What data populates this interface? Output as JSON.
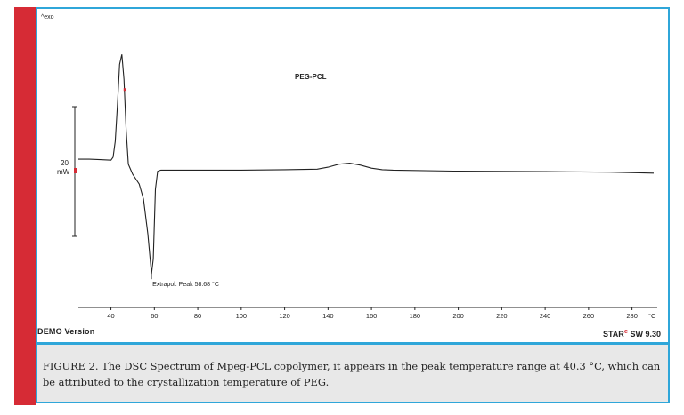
{
  "colors": {
    "accent_red": "#d62b35",
    "frame_blue": "#2fa6d9",
    "caption_bg": "#e8e8e8",
    "curve": "#222222"
  },
  "footer": {
    "demo_label": "DEMO Version",
    "star_label": "STAR",
    "star_mark": "e",
    "sw_label": " SW 9.30"
  },
  "caption": {
    "text": "FIGURE 2. The DSC Spectrum of Mpeg-PCL copolymer, it appears in the peak temperature range at 40.3 °C, which can be attributed to the crystallization temperature of PEG."
  },
  "chart_data": {
    "type": "line",
    "title": "PEG-PCL",
    "top_left_label": "^exo",
    "xlabel": "",
    "x_unit": "°C",
    "ylabel": "",
    "scale_bar": {
      "value": "20",
      "unit": "mW"
    },
    "xlim": [
      25,
      290
    ],
    "ylim": [
      -130,
      115
    ],
    "x_ticks": [
      40,
      60,
      80,
      100,
      120,
      140,
      160,
      180,
      200,
      220,
      240,
      260,
      280
    ],
    "x_tick_labels": [
      "40",
      "60",
      "80",
      "100",
      "120",
      "140",
      "160",
      "180",
      "200",
      "220",
      "240",
      "260",
      "280"
    ],
    "grid": false,
    "annotation": {
      "text": "Extrapol. Peak    58.68 °C",
      "x": 58.68,
      "y": -115
    },
    "series": [
      {
        "values": [
          [
            25,
            0
          ],
          [
            30,
            0
          ],
          [
            35,
            -0.5
          ],
          [
            40,
            -1
          ],
          [
            41,
            2
          ],
          [
            42,
            18
          ],
          [
            43,
            55
          ],
          [
            44,
            95
          ],
          [
            45,
            105
          ],
          [
            46,
            80
          ],
          [
            47,
            30
          ],
          [
            48,
            -5
          ],
          [
            50,
            -15
          ],
          [
            53,
            -25
          ],
          [
            55,
            -40
          ],
          [
            57,
            -75
          ],
          [
            58.68,
            -115
          ],
          [
            59.5,
            -100
          ],
          [
            60.5,
            -30
          ],
          [
            61.5,
            -12
          ],
          [
            63,
            -11
          ],
          [
            70,
            -11
          ],
          [
            80,
            -11
          ],
          [
            100,
            -11
          ],
          [
            120,
            -10.5
          ],
          [
            135,
            -10
          ],
          [
            140,
            -8
          ],
          [
            145,
            -5
          ],
          [
            150,
            -4
          ],
          [
            155,
            -6
          ],
          [
            160,
            -9
          ],
          [
            165,
            -10.5
          ],
          [
            170,
            -11
          ],
          [
            200,
            -12
          ],
          [
            240,
            -12.5
          ],
          [
            270,
            -13
          ],
          [
            290,
            -14
          ]
        ]
      }
    ]
  }
}
